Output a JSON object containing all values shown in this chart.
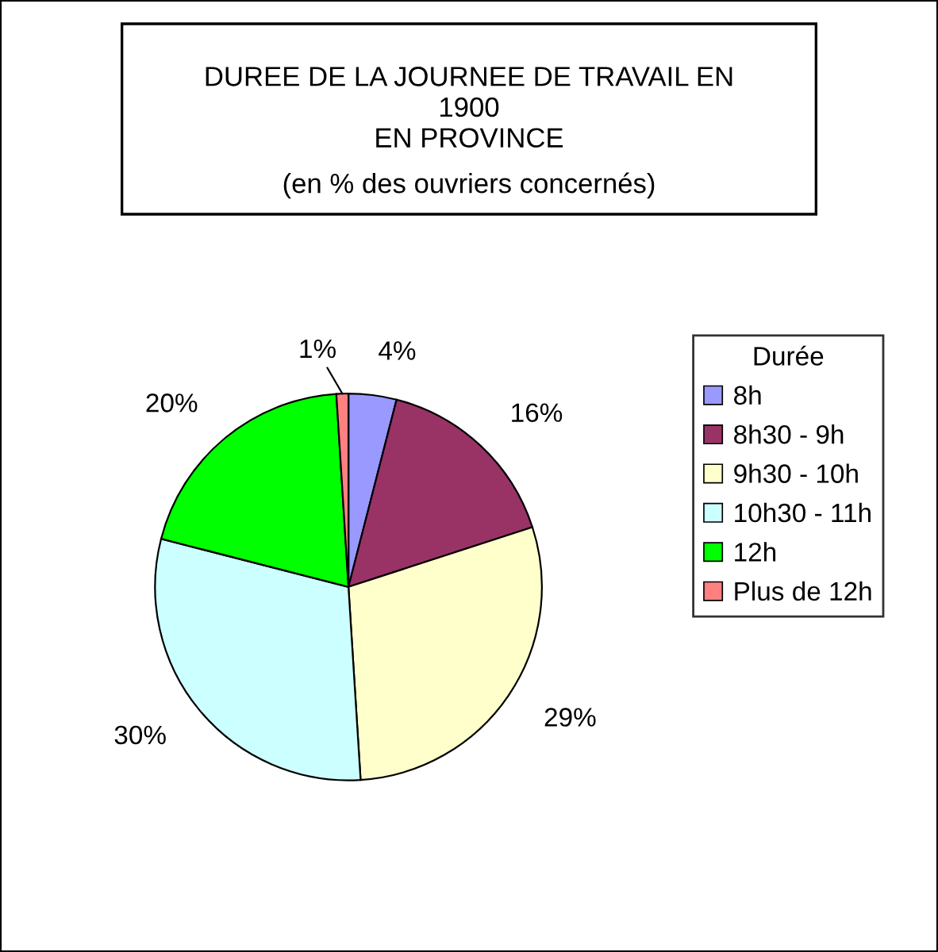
{
  "chart_data": {
    "type": "pie",
    "title": "DUREE DE LA JOURNEE DE TRAVAIL EN\n1900\nEN PROVINCE",
    "subtitle": "(en % des ouvriers concernés)",
    "legend_title": "Durée",
    "categories": [
      "8h",
      "8h30 - 9h",
      "9h30 - 10h",
      "10h30 - 11h",
      "12h",
      "Plus de 12h"
    ],
    "values": [
      4,
      16,
      29,
      30,
      20,
      1
    ],
    "colors": [
      "#9999ff",
      "#993366",
      "#ffffcc",
      "#ccffff",
      "#00ff00",
      "#ff8080"
    ],
    "value_labels": [
      "4%",
      "16%",
      "29%",
      "30%",
      "20%",
      "1%"
    ],
    "legend": "right"
  }
}
